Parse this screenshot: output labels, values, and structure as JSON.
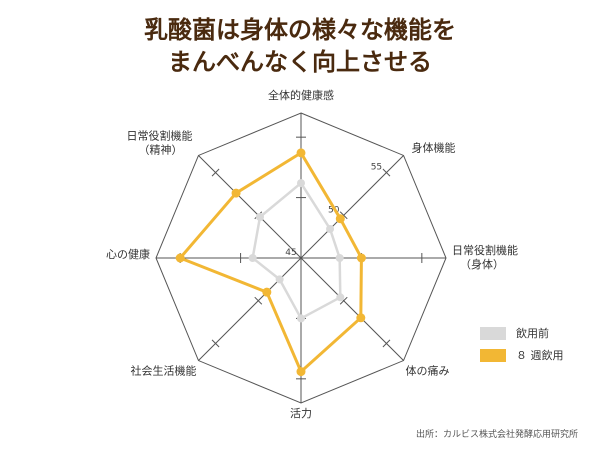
{
  "title_lines": [
    "乳酸菌は身体の様々な機能を",
    "まんべんなく向上させる"
  ],
  "source": "出所：カルビス株式会社発酵応用研究所",
  "colors": {
    "grid": "#555555",
    "before": "#d9d9d9",
    "after": "#f2b734",
    "title": "#4a2a0f"
  },
  "chart_data": {
    "type": "radar",
    "axes": [
      [
        "全体的健康感"
      ],
      [
        "身体機能"
      ],
      [
        "日常役割機能",
        "（身体）"
      ],
      [
        "体の痛み"
      ],
      [
        "活力"
      ],
      [
        "社会生活機能"
      ],
      [
        "心の健康"
      ],
      [
        "日常役割機能",
        "（精神）"
      ]
    ],
    "scale_min": 45,
    "scale_max": 57,
    "ticks": [
      45,
      50,
      55
    ],
    "tick_labels": [
      "45",
      "50",
      "55"
    ],
    "series": [
      {
        "name": "飲用前",
        "color": "#d9d9d9",
        "values": [
          51.2,
          48.4,
          48.2,
          49.6,
          50.0,
          47.5,
          49.0,
          49.8
        ]
      },
      {
        "name": "８ 週飲用",
        "color": "#f2b734",
        "values": [
          53.7,
          49.6,
          50.0,
          52.0,
          54.4,
          49.0,
          55.0,
          52.6
        ]
      }
    ]
  }
}
